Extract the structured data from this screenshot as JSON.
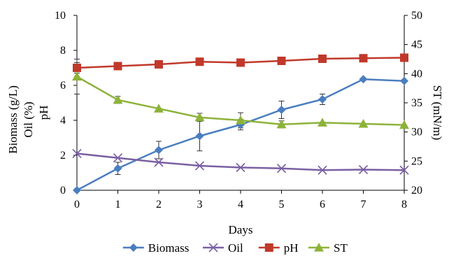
{
  "chart_data": {
    "type": "line",
    "title": "",
    "xlabel": "Days",
    "ylabel_left": [
      "Biomass (g/L)",
      "Oil (%)",
      "pH"
    ],
    "ylabel_right": "ST (mN/m)",
    "x": [
      0,
      1,
      2,
      3,
      4,
      5,
      6,
      7,
      8
    ],
    "xlim": [
      0,
      8
    ],
    "ylim_left": [
      0,
      10
    ],
    "ylim_right": [
      20,
      50
    ],
    "yticks_left": [
      0,
      2,
      4,
      6,
      8,
      10
    ],
    "yticks_right": [
      20,
      25,
      30,
      35,
      40,
      45,
      50
    ],
    "grid": false,
    "legend_position": "bottom",
    "series": [
      {
        "name": "Biomass",
        "axis": "left",
        "color": "#4a7ec0",
        "marker": "diamond",
        "values": [
          0.0,
          1.25,
          2.3,
          3.1,
          3.75,
          4.6,
          5.2,
          6.35,
          6.25
        ],
        "error": [
          0,
          0.35,
          0.5,
          0.85,
          0.3,
          0.5,
          0.3,
          0,
          0
        ]
      },
      {
        "name": "Oil",
        "axis": "left",
        "color": "#7b5fa3",
        "marker": "x",
        "values": [
          2.1,
          1.85,
          1.6,
          1.4,
          1.3,
          1.25,
          1.15,
          1.18,
          1.15
        ],
        "error": [
          0,
          0,
          0,
          0,
          0,
          0,
          0,
          0,
          0
        ]
      },
      {
        "name": "pH",
        "axis": "left",
        "color": "#c0392b",
        "marker": "square",
        "values": [
          7.0,
          7.1,
          7.2,
          7.35,
          7.3,
          7.4,
          7.52,
          7.55,
          7.58
        ],
        "error": [
          0.3,
          0,
          0,
          0,
          0,
          0,
          0,
          0,
          0
        ]
      },
      {
        "name": "ST",
        "axis": "right",
        "color": "#8db33a",
        "marker": "triangle",
        "values": [
          39.5,
          35.5,
          34.0,
          32.5,
          32.0,
          31.3,
          31.6,
          31.4,
          31.2
        ],
        "error": [
          3.0,
          0.6,
          0,
          0.7,
          1.3,
          0.6,
          0,
          0,
          0
        ]
      }
    ]
  }
}
